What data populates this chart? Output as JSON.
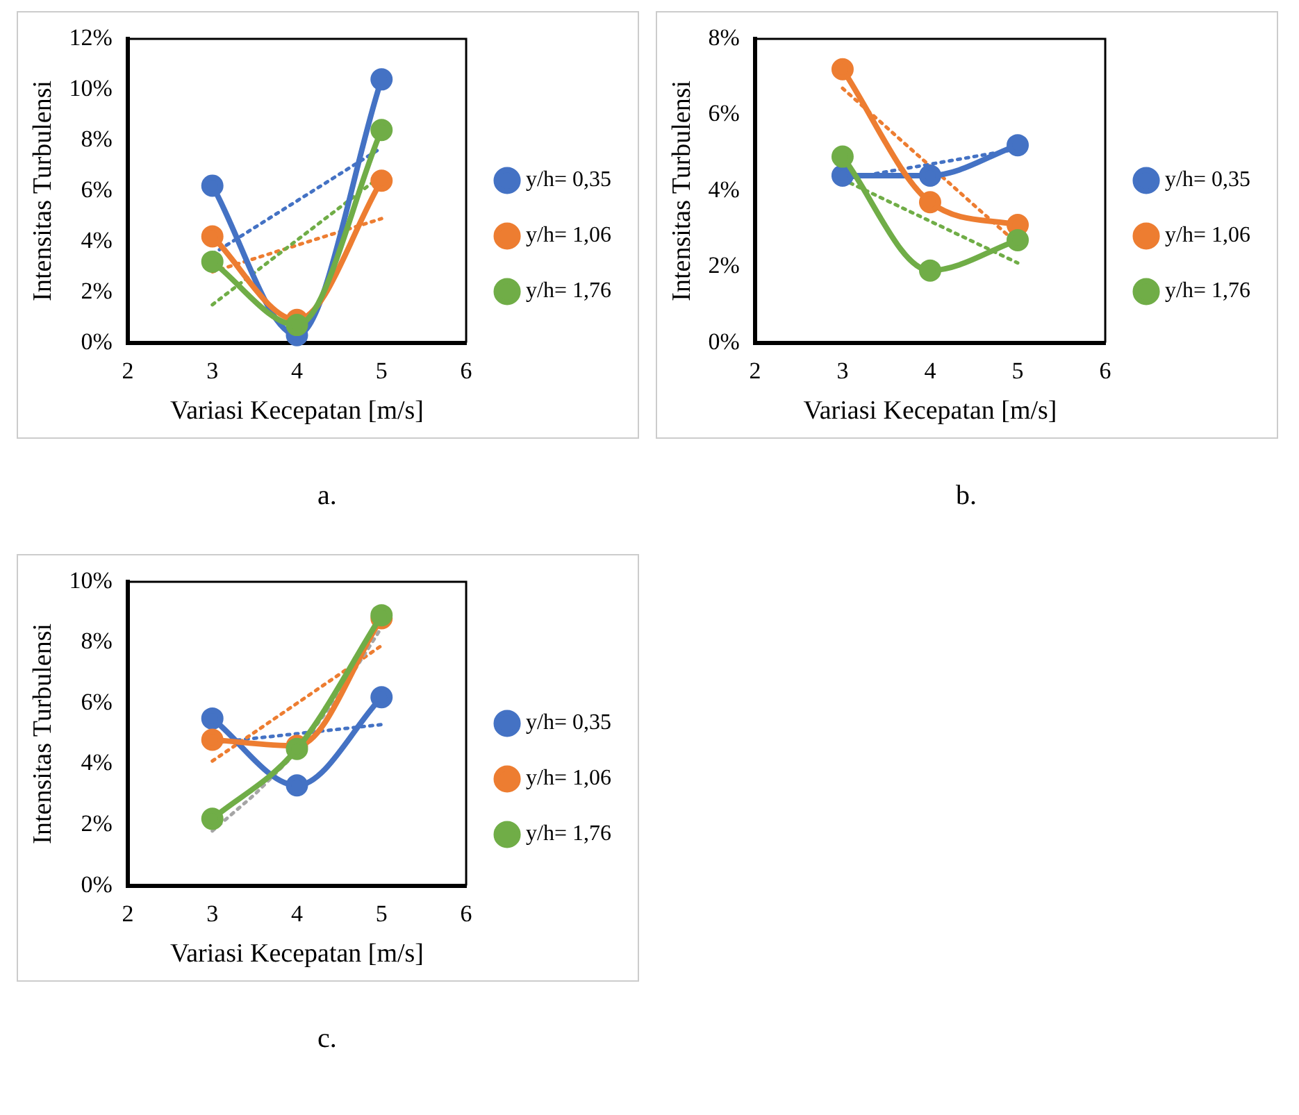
{
  "chart_data": [
    {
      "type": "line",
      "xlabel": "Variasi Kecepatan [m/s]",
      "ylabel": "Intensitas Turbulensi",
      "annotations": [
        "a."
      ],
      "x": [
        3,
        4,
        5
      ],
      "xlim": [
        2,
        6
      ],
      "xticks": [
        2,
        3,
        4,
        5,
        6
      ],
      "ylim": [
        0,
        12
      ],
      "yticks": [
        {
          "value": 0,
          "label": "0%"
        },
        {
          "value": 2,
          "label": "2%"
        },
        {
          "value": 4,
          "label": "4%"
        },
        {
          "value": 6,
          "label": "6%"
        },
        {
          "value": 8,
          "label": "8%"
        },
        {
          "value": 10,
          "label": "10%"
        },
        {
          "value": 12,
          "label": "12%"
        }
      ],
      "grid": false,
      "legend": "right",
      "marker": "circle",
      "line_style": "solid",
      "series": [
        {
          "name": "y/h= 0,35",
          "color": "#4472c4",
          "values": [
            6.2,
            0.3,
            10.4
          ]
        },
        {
          "name": "y/h= 1,06",
          "color": "#ed7d31",
          "values": [
            4.2,
            0.9,
            6.4
          ]
        },
        {
          "name": "y/h= 1,76",
          "color": "#70ad47",
          "values": [
            3.2,
            0.7,
            8.4
          ]
        },
        {
          "type": "line",
          "color": "#4472c4",
          "x": [
            3,
            5
          ],
          "values": [
            3.5,
            7.7
          ],
          "marker": "none",
          "line_style": "dotted"
        },
        {
          "type": "line",
          "color": "#ed7d31",
          "x": [
            3,
            5
          ],
          "values": [
            2.8,
            4.9
          ],
          "marker": "none",
          "line_style": "dotted"
        },
        {
          "type": "line",
          "color": "#70ad47",
          "x": [
            3,
            5
          ],
          "values": [
            1.5,
            6.6
          ],
          "marker": "none",
          "line_style": "dotted"
        }
      ]
    },
    {
      "type": "line",
      "xlabel": "Variasi Kecepatan [m/s]",
      "ylabel": "Intensitas Turbulensi",
      "annotations": [
        "b."
      ],
      "x": [
        3,
        4,
        5
      ],
      "xlim": [
        2,
        6
      ],
      "xticks": [
        2,
        3,
        4,
        5,
        6
      ],
      "ylim": [
        0,
        8
      ],
      "yticks": [
        {
          "value": 0,
          "label": "0%"
        },
        {
          "value": 2,
          "label": "2%"
        },
        {
          "value": 4,
          "label": "4%"
        },
        {
          "value": 6,
          "label": "6%"
        },
        {
          "value": 8,
          "label": "8%"
        }
      ],
      "grid": false,
      "legend": "right",
      "marker": "circle",
      "line_style": "solid",
      "series": [
        {
          "name": "y/h= 0,35",
          "color": "#4472c4",
          "values": [
            4.4,
            4.4,
            5.2
          ]
        },
        {
          "name": "y/h= 1,06",
          "color": "#ed7d31",
          "values": [
            7.2,
            3.7,
            3.1
          ]
        },
        {
          "name": "y/h= 1,76",
          "color": "#70ad47",
          "values": [
            4.9,
            1.9,
            2.7
          ]
        },
        {
          "type": "line",
          "color": "#4472c4",
          "x": [
            3,
            5
          ],
          "values": [
            4.3,
            5.1
          ],
          "marker": "none",
          "line_style": "dotted"
        },
        {
          "type": "line",
          "color": "#ed7d31",
          "x": [
            3,
            5
          ],
          "values": [
            6.7,
            2.6
          ],
          "marker": "none",
          "line_style": "dotted"
        },
        {
          "type": "line",
          "color": "#70ad47",
          "x": [
            3,
            5
          ],
          "values": [
            4.3,
            2.1
          ],
          "marker": "none",
          "line_style": "dotted"
        }
      ]
    },
    {
      "type": "line",
      "xlabel": "Variasi Kecepatan [m/s]",
      "ylabel": "Intensitas Turbulensi",
      "annotations": [
        "c."
      ],
      "x": [
        3,
        4,
        5
      ],
      "xlim": [
        2,
        6
      ],
      "xticks": [
        2,
        3,
        4,
        5,
        6
      ],
      "ylim": [
        0,
        10
      ],
      "yticks": [
        {
          "value": 0,
          "label": "0%"
        },
        {
          "value": 2,
          "label": "2%"
        },
        {
          "value": 4,
          "label": "4%"
        },
        {
          "value": 6,
          "label": "6%"
        },
        {
          "value": 8,
          "label": "8%"
        },
        {
          "value": 10,
          "label": "10%"
        }
      ],
      "grid": false,
      "legend": "right",
      "marker": "circle",
      "line_style": "solid",
      "series": [
        {
          "name": "y/h= 0,35",
          "color": "#4472c4",
          "values": [
            5.5,
            3.3,
            6.2
          ]
        },
        {
          "name": "y/h= 1,06",
          "color": "#ed7d31",
          "values": [
            4.8,
            4.6,
            8.8
          ]
        },
        {
          "name": "y/h= 1,76",
          "color": "#70ad47",
          "values": [
            2.2,
            4.5,
            8.9
          ]
        },
        {
          "type": "line",
          "color": "#4472c4",
          "x": [
            3,
            5
          ],
          "values": [
            4.7,
            5.3
          ],
          "marker": "none",
          "line_style": "dotted"
        },
        {
          "type": "line",
          "color": "#ed7d31",
          "x": [
            3,
            5
          ],
          "values": [
            4.1,
            7.9
          ],
          "marker": "none",
          "line_style": "dotted"
        },
        {
          "type": "line",
          "color": "#a5a5a5",
          "x": [
            3,
            3.5,
            4,
            4.5,
            5
          ],
          "values": [
            1.8,
            3.0,
            4.4,
            6.3,
            8.5
          ],
          "marker": "none",
          "line_style": "dotted"
        }
      ]
    }
  ]
}
